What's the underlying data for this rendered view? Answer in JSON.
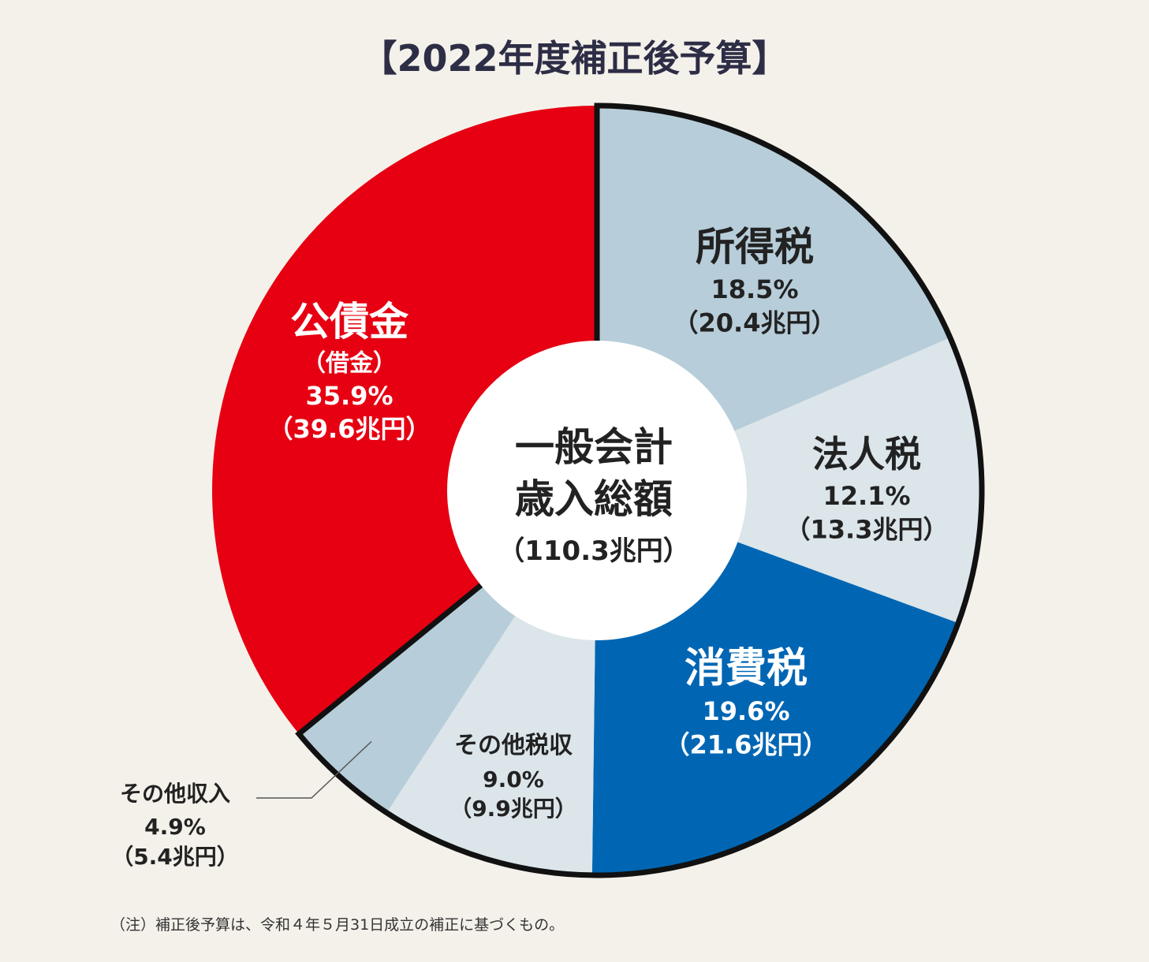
{
  "chart_data": {
    "type": "pie",
    "title": "【2022年度補正後予算】",
    "center_label": [
      "一般会計",
      "歳入総額",
      "（110.3兆円）"
    ],
    "slices": [
      {
        "name": "所得税",
        "percent": 18.5,
        "amount": "（20.4兆円）",
        "percent_label": "18.5%",
        "color": "#b7cdd9",
        "label_color": "#222222",
        "outlined": true
      },
      {
        "name": "法人税",
        "percent": 12.1,
        "amount": "（13.3兆円）",
        "percent_label": "12.1%",
        "color": "#dbe5ea",
        "label_color": "#222222",
        "outlined": true
      },
      {
        "name": "消費税",
        "percent": 19.6,
        "amount": "（21.6兆円）",
        "percent_label": "19.6%",
        "color": "#0066b3",
        "label_color": "#ffffff",
        "outlined": true
      },
      {
        "name": "その他税収",
        "percent": 9.0,
        "amount": "（9.9兆円）",
        "percent_label": "9.0%",
        "color": "#dbe5ea",
        "label_color": "#222222",
        "outlined": true
      },
      {
        "name": "その他収入",
        "percent": 4.9,
        "amount": "（5.4兆円）",
        "percent_label": "4.9%",
        "color": "#b7cdd9",
        "label_color": "#222222",
        "outlined": true,
        "external_label": true
      },
      {
        "name": "公債金",
        "subname": "（借金）",
        "percent": 35.9,
        "amount": "（39.6兆円）",
        "percent_label": "35.9%",
        "color": "#e60012",
        "label_color": "#ffffff",
        "outlined": false
      }
    ],
    "outline_color": "#111111"
  },
  "footnote": "（注）補正後予算は、令和４年５月31日成立の補正に基づくもの。"
}
